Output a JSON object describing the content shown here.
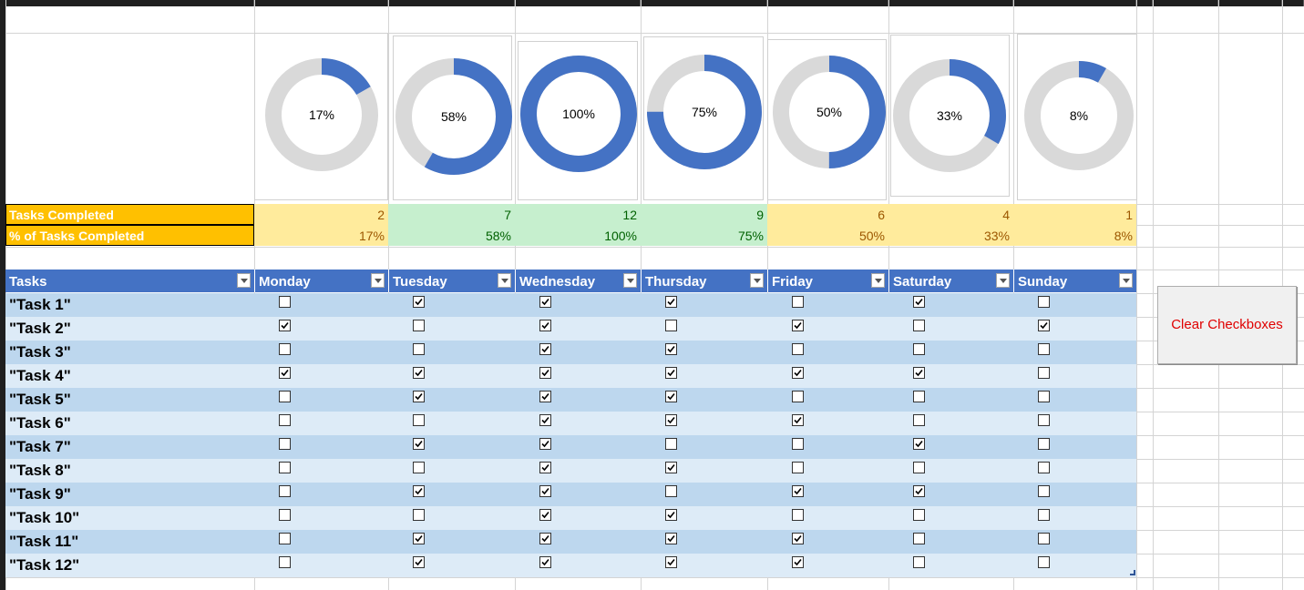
{
  "colors": {
    "ring_fill": "#4472c4",
    "ring_track": "#d9d9d9",
    "summary_label_bg": "#ffc000",
    "good_bg": "#c6efce",
    "good_text": "#006100",
    "neutral_bg": "#ffeb9c",
    "neutral_text": "#9c5700",
    "table_header_bg": "#4472c4",
    "band_dark": "#bdd7ee",
    "band_light": "#ddebf7",
    "button_text": "#e00000"
  },
  "charts": [
    {
      "label": "17%",
      "value": 0.1667
    },
    {
      "label": "58%",
      "value": 0.5833
    },
    {
      "label": "100%",
      "value": 1.0
    },
    {
      "label": "75%",
      "value": 0.75
    },
    {
      "label": "50%",
      "value": 0.5
    },
    {
      "label": "33%",
      "value": 0.3333
    },
    {
      "label": "8%",
      "value": 0.0833
    }
  ],
  "summary": {
    "completed_label": "Tasks Completed",
    "percent_label": "% of Tasks Completed",
    "completed": [
      "2",
      "7",
      "12",
      "9",
      "6",
      "4",
      "1"
    ],
    "percent": [
      "17%",
      "58%",
      "100%",
      "75%",
      "50%",
      "33%",
      "8%"
    ],
    "style": [
      "neutral",
      "good",
      "good",
      "good",
      "neutral",
      "neutral",
      "neutral"
    ]
  },
  "table": {
    "headers": [
      "Tasks",
      "Monday",
      "Tuesday",
      "Wednesday",
      "Thursday",
      "Friday",
      "Saturday",
      "Sunday"
    ],
    "rows": [
      {
        "task": "\"Task 1\"",
        "checks": [
          false,
          true,
          true,
          true,
          false,
          true,
          false
        ]
      },
      {
        "task": "\"Task 2\"",
        "checks": [
          true,
          false,
          true,
          false,
          true,
          false,
          true
        ]
      },
      {
        "task": "\"Task 3\"",
        "checks": [
          false,
          false,
          true,
          true,
          false,
          false,
          false
        ]
      },
      {
        "task": "\"Task 4\"",
        "checks": [
          true,
          true,
          true,
          true,
          true,
          true,
          false
        ]
      },
      {
        "task": "\"Task 5\"",
        "checks": [
          false,
          true,
          true,
          true,
          false,
          false,
          false
        ]
      },
      {
        "task": "\"Task 6\"",
        "checks": [
          false,
          false,
          true,
          true,
          true,
          false,
          false
        ]
      },
      {
        "task": "\"Task 7\"",
        "checks": [
          false,
          true,
          true,
          false,
          false,
          true,
          false
        ]
      },
      {
        "task": "\"Task 8\"",
        "checks": [
          false,
          false,
          true,
          true,
          false,
          false,
          false
        ]
      },
      {
        "task": "\"Task 9\"",
        "checks": [
          false,
          true,
          true,
          false,
          true,
          true,
          false
        ]
      },
      {
        "task": "\"Task 10\"",
        "checks": [
          false,
          false,
          true,
          true,
          false,
          false,
          false
        ]
      },
      {
        "task": "\"Task 11\"",
        "checks": [
          false,
          true,
          true,
          true,
          true,
          false,
          false
        ]
      },
      {
        "task": "\"Task 12\"",
        "checks": [
          false,
          true,
          true,
          true,
          true,
          false,
          false
        ]
      }
    ]
  },
  "button": {
    "clear_label": "Clear Checkboxes"
  }
}
